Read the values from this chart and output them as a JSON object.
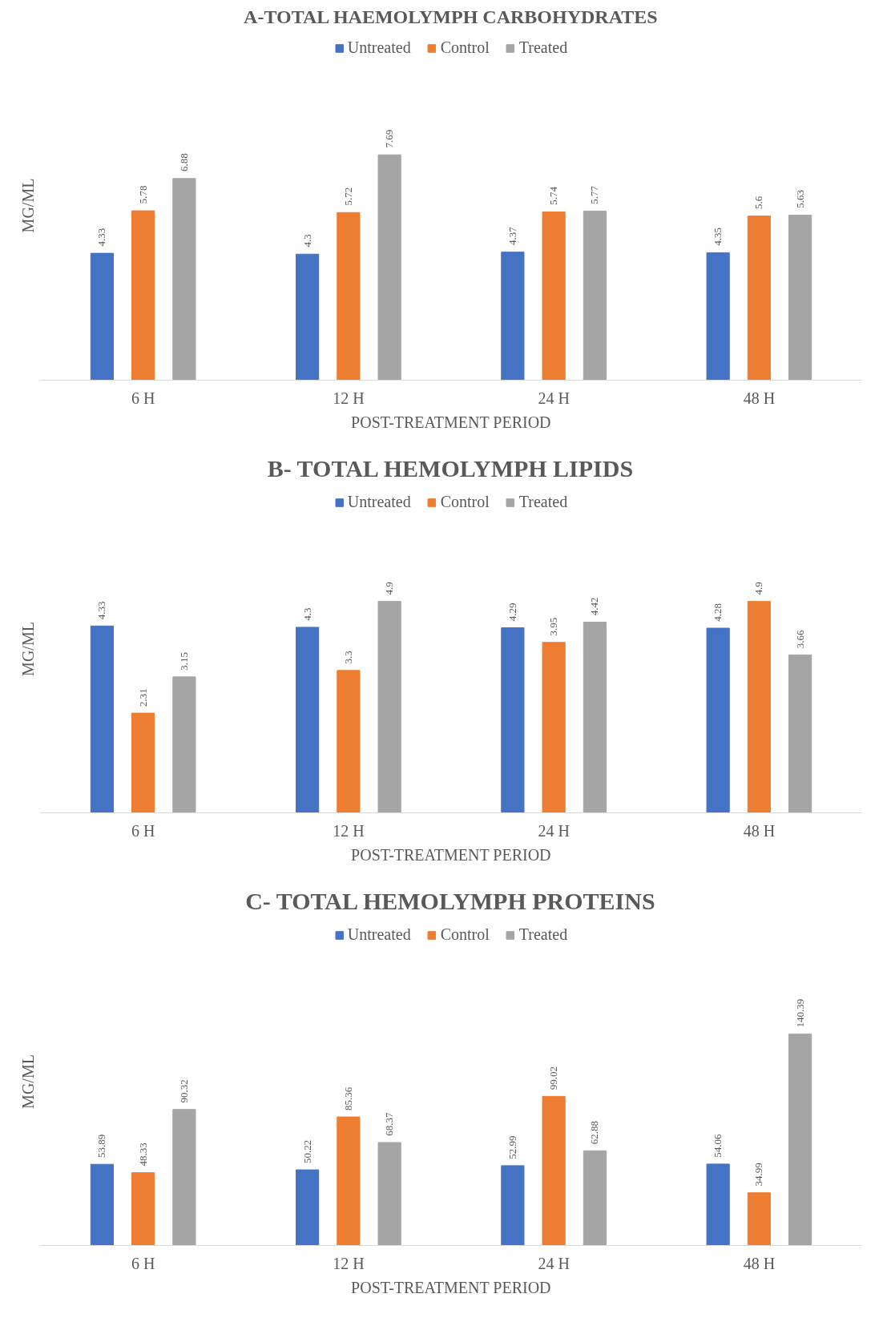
{
  "chart_data": [
    {
      "type": "bar",
      "title": "A-TOTAL HAEMOLYMPH CARBOHYDRATES",
      "xlabel": "POST-TREATMENT PERIOD",
      "ylabel": "MG/ML",
      "categories": [
        "6 H",
        "12 H",
        "24 H",
        "48 H"
      ],
      "legend": "top",
      "data_labels": true,
      "tick_labels": "x",
      "series": [
        {
          "name": "Untreated",
          "color": "#4472c4",
          "values": [
            4.33,
            4.3,
            4.37,
            4.35
          ]
        },
        {
          "name": "Control",
          "color": "#ed7d31",
          "values": [
            5.78,
            5.72,
            5.74,
            5.6
          ]
        },
        {
          "name": "Treated",
          "color": "#a5a5a5",
          "values": [
            6.88,
            7.69,
            5.77,
            5.63
          ]
        }
      ]
    },
    {
      "type": "bar",
      "title": "B- TOTAL HEMOLYMPH LIPIDS",
      "xlabel": "POST-TREATMENT PERIOD",
      "ylabel": "MG/ML",
      "categories": [
        "6 H",
        "12 H",
        "24 H",
        "48 H"
      ],
      "legend": "top",
      "data_labels": true,
      "tick_labels": "x",
      "series": [
        {
          "name": "Untreated",
          "color": "#4472c4",
          "values": [
            4.33,
            4.3,
            4.29,
            4.28
          ]
        },
        {
          "name": "Control",
          "color": "#ed7d31",
          "values": [
            2.31,
            3.3,
            3.95,
            4.9
          ]
        },
        {
          "name": "Treated",
          "color": "#a5a5a5",
          "values": [
            3.15,
            4.9,
            4.42,
            3.66
          ]
        }
      ]
    },
    {
      "type": "bar",
      "title": "C- TOTAL HEMOLYMPH PROTEINS",
      "xlabel": "POST-TREATMENT PERIOD",
      "ylabel": "MG/ML",
      "categories": [
        "6 H",
        "12 H",
        "24 H",
        "48 H"
      ],
      "legend": "top",
      "data_labels": true,
      "tick_labels": "x",
      "series": [
        {
          "name": "Untreated",
          "color": "#4472c4",
          "values": [
            53.89,
            50.22,
            52.99,
            54.06
          ]
        },
        {
          "name": "Control",
          "color": "#ed7d31",
          "values": [
            48.33,
            85.36,
            99.02,
            34.99
          ]
        },
        {
          "name": "Treated",
          "color": "#a5a5a5",
          "values": [
            90.32,
            68.37,
            62.88,
            140.39
          ]
        }
      ]
    }
  ]
}
